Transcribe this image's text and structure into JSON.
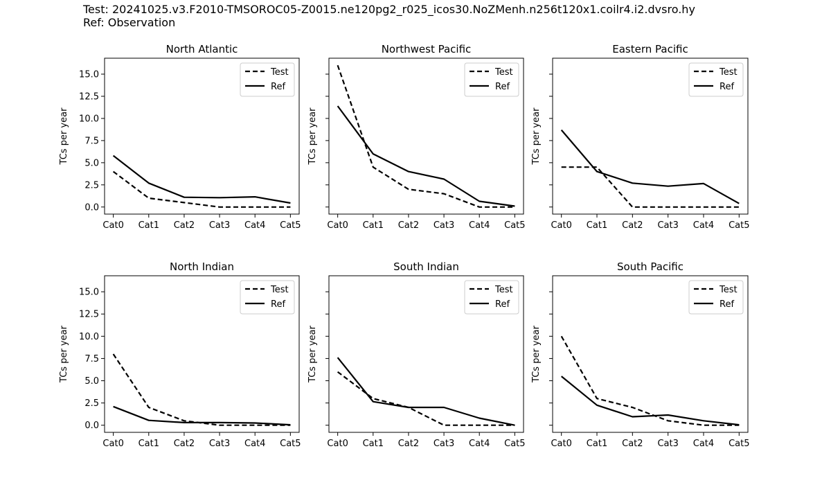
{
  "header": {
    "test_label": "Test: 20241025.v3.F2010-TMSOROC05-Z0015.ne120pg2_r025_icos30.NoZMenh.n256t120x1.coilr4.i2.dvsro.hy",
    "ref_label": "Ref: Observation"
  },
  "chart_data": [
    {
      "type": "line",
      "title": "North Atlantic",
      "categories": [
        "Cat0",
        "Cat1",
        "Cat2",
        "Cat3",
        "Cat4",
        "Cat5"
      ],
      "xlabel": "",
      "ylabel": "TCs per year",
      "ylim": [
        -0.8,
        16.8
      ],
      "yticks": [
        "0.0",
        "2.5",
        "5.0",
        "7.5",
        "10.0",
        "12.5",
        "15.0"
      ],
      "series": [
        {
          "name": "Test",
          "style": "dashed",
          "values": [
            4.0,
            1.0,
            0.5,
            0.0,
            0.0,
            0.0
          ]
        },
        {
          "name": "Ref",
          "style": "solid",
          "values": [
            5.8,
            2.7,
            1.1,
            1.05,
            1.15,
            0.45
          ]
        }
      ],
      "legend": "top-right"
    },
    {
      "type": "line",
      "title": "Northwest Pacific",
      "categories": [
        "Cat0",
        "Cat1",
        "Cat2",
        "Cat3",
        "Cat4",
        "Cat5"
      ],
      "xlabel": "",
      "ylabel": "TCs per year",
      "ylim": [
        -0.8,
        16.8
      ],
      "series": [
        {
          "name": "Test",
          "style": "dashed",
          "values": [
            16.0,
            4.5,
            2.0,
            1.5,
            0.0,
            0.0
          ]
        },
        {
          "name": "Ref",
          "style": "solid",
          "values": [
            11.4,
            6.0,
            4.0,
            3.15,
            0.65,
            0.1
          ]
        }
      ],
      "legend": "top-right"
    },
    {
      "type": "line",
      "title": "Eastern Pacific",
      "categories": [
        "Cat0",
        "Cat1",
        "Cat2",
        "Cat3",
        "Cat4",
        "Cat5"
      ],
      "xlabel": "",
      "ylabel": "TCs per year",
      "ylim": [
        -0.8,
        16.8
      ],
      "series": [
        {
          "name": "Test",
          "style": "dashed",
          "values": [
            4.5,
            4.5,
            0.0,
            0.0,
            0.0,
            0.0
          ]
        },
        {
          "name": "Ref",
          "style": "solid",
          "values": [
            8.7,
            4.0,
            2.7,
            2.35,
            2.65,
            0.4
          ]
        }
      ],
      "legend": "top-right"
    },
    {
      "type": "line",
      "title": "North Indian",
      "categories": [
        "Cat0",
        "Cat1",
        "Cat2",
        "Cat3",
        "Cat4",
        "Cat5"
      ],
      "xlabel": "",
      "ylabel": "TCs per year",
      "ylim": [
        -0.8,
        16.8
      ],
      "yticks": [
        "0.0",
        "2.5",
        "5.0",
        "7.5",
        "10.0",
        "12.5",
        "15.0"
      ],
      "series": [
        {
          "name": "Test",
          "style": "dashed",
          "values": [
            8.0,
            2.0,
            0.5,
            0.0,
            0.0,
            0.0
          ]
        },
        {
          "name": "Ref",
          "style": "solid",
          "values": [
            2.1,
            0.55,
            0.3,
            0.3,
            0.25,
            0.05
          ]
        }
      ],
      "legend": "top-right"
    },
    {
      "type": "line",
      "title": "South Indian",
      "categories": [
        "Cat0",
        "Cat1",
        "Cat2",
        "Cat3",
        "Cat4",
        "Cat5"
      ],
      "xlabel": "",
      "ylabel": "TCs per year",
      "ylim": [
        -0.8,
        16.8
      ],
      "series": [
        {
          "name": "Test",
          "style": "dashed",
          "values": [
            6.0,
            3.0,
            2.0,
            0.0,
            0.0,
            0.0
          ]
        },
        {
          "name": "Ref",
          "style": "solid",
          "values": [
            7.6,
            2.65,
            2.0,
            2.0,
            0.8,
            0.0
          ]
        }
      ],
      "legend": "top-right"
    },
    {
      "type": "line",
      "title": "South Pacific",
      "categories": [
        "Cat0",
        "Cat1",
        "Cat2",
        "Cat3",
        "Cat4",
        "Cat5"
      ],
      "xlabel": "",
      "ylabel": "TCs per year",
      "ylim": [
        -0.8,
        16.8
      ],
      "series": [
        {
          "name": "Test",
          "style": "dashed",
          "values": [
            10.0,
            3.0,
            2.0,
            0.5,
            0.0,
            0.0
          ]
        },
        {
          "name": "Ref",
          "style": "solid",
          "values": [
            5.5,
            2.25,
            0.95,
            1.15,
            0.5,
            0.05
          ]
        }
      ],
      "legend": "top-right"
    }
  ]
}
